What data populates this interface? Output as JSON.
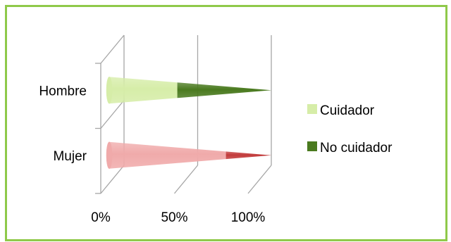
{
  "chart_data": {
    "type": "bar",
    "orientation": "horizontal",
    "stacked": "100%",
    "shape": "cone",
    "categories": [
      "Hombre",
      "Mujer"
    ],
    "series": [
      {
        "name": "Cuidador",
        "values": [
          42,
          72
        ]
      },
      {
        "name": "No cuidador",
        "values": [
          58,
          28
        ]
      }
    ],
    "x_ticks": [
      "0%",
      "50%",
      "100%"
    ],
    "xlim": [
      0,
      100
    ],
    "legend": "right",
    "grid": true,
    "colors": {
      "Hombre": {
        "Cuidador": "#d6eda8",
        "No cuidador": "#4a7a1f"
      },
      "Mujer": {
        "Cuidador": "#f0aaaa",
        "No cuidador": "#c23b3b"
      },
      "legend": {
        "Cuidador": "#d6eda8",
        "No cuidador": "#4a7a1f"
      },
      "frame": "#8fc94a",
      "grid": "#a6a6a6"
    }
  }
}
